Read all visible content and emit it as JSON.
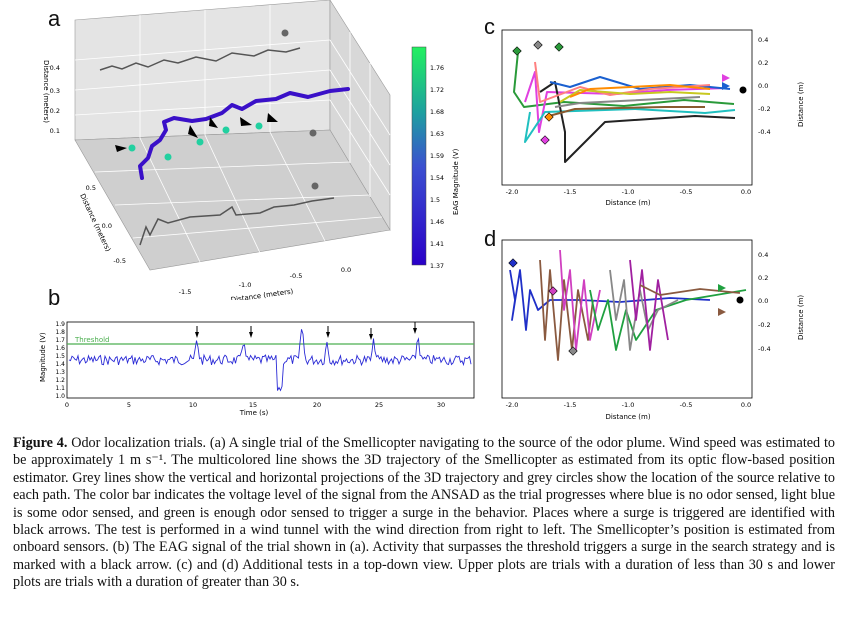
{
  "labels": {
    "a": "a",
    "b": "b",
    "c": "c",
    "d": "d"
  },
  "panel_a": {
    "axis_dist_x": "Distance (meters)",
    "axis_dist_y": "Distance (meters)",
    "axis_dist_z": "Distance (meters)",
    "x_ticks": [
      "-1.5",
      "-1.0",
      "-0.5",
      "0.0"
    ],
    "y_ticks": [
      "0.5",
      "0.0",
      "-0.5"
    ],
    "z_ticks": [
      "0.4",
      "0.3",
      "0.2",
      "0.1"
    ],
    "colorbar_label": "EAG Magnitude (V)",
    "colorbar_ticks": [
      "1.76",
      "1.72",
      "1.68",
      "1.63",
      "1.59",
      "1.54",
      "1.5",
      "1.46",
      "1.41",
      "1.37"
    ]
  },
  "panel_b": {
    "xlabel": "Time (s)",
    "ylabel": "Magnitude (V)",
    "threshold_label": "Threshold",
    "x_ticks": [
      "0",
      "5",
      "10",
      "15",
      "20",
      "25",
      "30"
    ],
    "y_ticks": [
      "1.9",
      "1.8",
      "1.7",
      "1.6",
      "1.5",
      "1.4",
      "1.3",
      "1.2",
      "1.1",
      "1.0"
    ]
  },
  "panel_c": {
    "xlabel": "Distance (m)",
    "ylabel": "Distance (m)",
    "x_ticks": [
      "-2.0",
      "-1.5",
      "-1.0",
      "-0.5",
      "0.0"
    ],
    "y_ticks": [
      "0.4",
      "0.2",
      "0.0",
      "-0.2",
      "-0.4"
    ]
  },
  "panel_d": {
    "xlabel": "Distance (m)",
    "ylabel": "Distance (m)",
    "x_ticks": [
      "-2.0",
      "-1.5",
      "-1.0",
      "-0.5",
      "0.0"
    ],
    "y_ticks": [
      "0.4",
      "0.2",
      "0.0",
      "-0.2",
      "-0.4"
    ]
  },
  "caption": {
    "heading": "Figure 4.",
    "text": "Odor localization trials. (a) A single trial of the Smellicopter navigating to the source of the odor plume. Wind speed was estimated to be approximately 1 m s⁻¹. The multicolored line shows the 3D trajectory of the Smellicopter as estimated from its optic flow-based position estimator. Grey lines show the vertical and horizontal projections of the 3D trajectory and grey circles show the location of the source relative to each path. The color bar indicates the voltage level of the signal from the ANSAD as the trial progresses where blue is no odor sensed, light blue is some odor sensed, and green is enough odor sensed to trigger a surge in the behavior. Places where a surge is triggered are identified with black arrows. The test is performed in a wind tunnel with the wind direction from right to left. The Smellicopter’s position is estimated from onboard sensors. (b) The EAG signal of the trial shown in (a). Activity that surpasses the threshold triggers a surge in the search strategy and is marked with a black arrow. (c) and (d) Additional tests in a top-down view. Upper plots are trials with a duration of less than 30 s and lower plots are trials with a duration of greater than 30 s."
  },
  "colors": {
    "eag": "#2b2bd6",
    "threshold": "#4caf50",
    "trajectory_low": "#3a0fc0",
    "trajectory_high": "#22e0a0"
  }
}
